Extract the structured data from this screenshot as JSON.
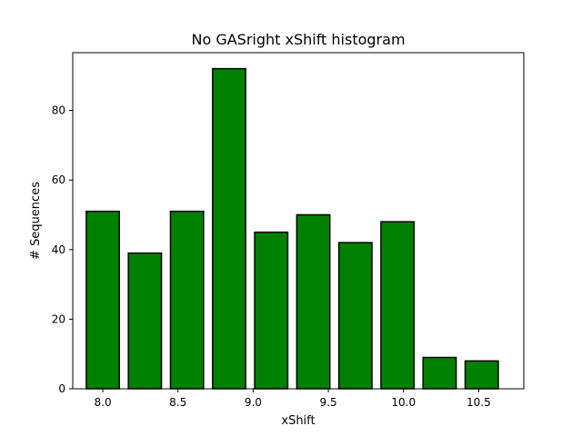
{
  "chart_data": {
    "type": "bar",
    "title": "No GASright xShift histogram",
    "xlabel": "xShift",
    "ylabel": "# Sequences",
    "x": [
      8.0,
      8.28,
      8.56,
      8.84,
      9.12,
      9.4,
      9.68,
      9.96,
      10.24,
      10.52
    ],
    "values": [
      51,
      39,
      51,
      92,
      45,
      50,
      42,
      48,
      9,
      8
    ],
    "bar_width": 0.22,
    "xlim": [
      7.8,
      10.8
    ],
    "ylim": [
      0,
      96.6
    ],
    "xticks": [
      8.0,
      8.5,
      9.0,
      9.5,
      10.0,
      10.5
    ],
    "xtick_labels": [
      "8.0",
      "8.5",
      "9.0",
      "9.5",
      "10.0",
      "10.5"
    ],
    "yticks": [
      0,
      20,
      40,
      60,
      80
    ],
    "ytick_labels": [
      "0",
      "20",
      "40",
      "60",
      "80"
    ],
    "bar_color": "#008000",
    "edge_color": "#000000",
    "grid": false,
    "legend": false
  }
}
